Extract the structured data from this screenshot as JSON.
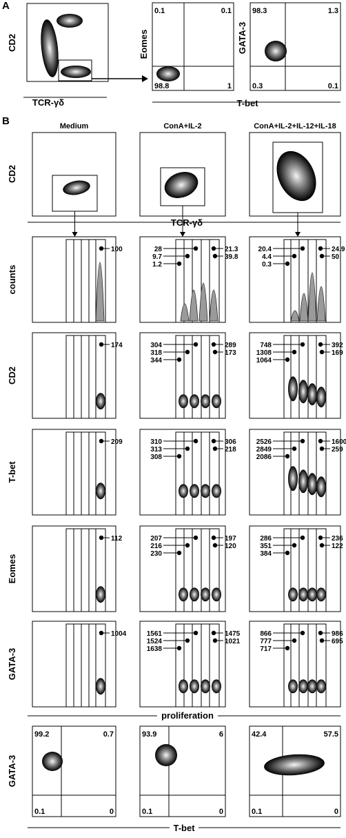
{
  "panel_labels": [
    "A",
    "B"
  ],
  "panelA": {
    "left": {
      "ylabel": "CD2",
      "xlabel": "TCR-γδ"
    },
    "eomes": {
      "ylabel": "Eomes",
      "q": [
        "0.1",
        "0.1",
        "98.8",
        "1"
      ]
    },
    "gata3": {
      "ylabel": "GATA-3",
      "q": [
        "98.3",
        "1.3",
        "0.3",
        "0.1"
      ]
    },
    "xlabel": "T-bet"
  },
  "panelB": {
    "conditions": [
      "Medium",
      "ConA+IL-2",
      "ConA+IL-2+IL-12+IL-18"
    ],
    "top": {
      "ylabel": "CD2",
      "xlabel": "TCR-γδ"
    },
    "rows": [
      {
        "ylabel": "counts",
        "labels": [
          {
            "right": [
              "100"
            ],
            "left": []
          },
          {
            "right": [
              "21.3",
              "39.8"
            ],
            "left": [
              "28",
              "9.7",
              "1.2"
            ]
          },
          {
            "right": [
              "24.9",
              "50"
            ],
            "left": [
              "20.4",
              "4.4",
              "0.3"
            ]
          }
        ]
      },
      {
        "ylabel": "CD2",
        "labels": [
          {
            "right": [
              "174"
            ],
            "left": []
          },
          {
            "right": [
              "289",
              "173"
            ],
            "left": [
              "304",
              "318",
              "344"
            ]
          },
          {
            "right": [
              "392",
              "169"
            ],
            "left": [
              "748",
              "1308",
              "1064"
            ]
          }
        ]
      },
      {
        "ylabel": "T-bet",
        "labels": [
          {
            "right": [
              "209"
            ],
            "left": []
          },
          {
            "right": [
              "306",
              "218"
            ],
            "left": [
              "310",
              "313",
              "308"
            ]
          },
          {
            "right": [
              "1600",
              "259"
            ],
            "left": [
              "2526",
              "2849",
              "2086"
            ]
          }
        ]
      },
      {
        "ylabel": "Eomes",
        "labels": [
          {
            "right": [
              "112"
            ],
            "left": []
          },
          {
            "right": [
              "197",
              "120"
            ],
            "left": [
              "207",
              "216",
              "230"
            ]
          },
          {
            "right": [
              "236",
              "122"
            ],
            "left": [
              "286",
              "351",
              "384"
            ]
          }
        ]
      },
      {
        "ylabel": "GATA-3",
        "labels": [
          {
            "right": [
              "1004"
            ],
            "left": []
          },
          {
            "right": [
              "1475",
              "1021"
            ],
            "left": [
              "1561",
              "1524",
              "1638"
            ]
          },
          {
            "right": [
              "986",
              "695"
            ],
            "left": [
              "866",
              "777",
              "717"
            ]
          }
        ]
      }
    ],
    "proliferation_label": "proliferation",
    "bottom": {
      "ylabel": "GATA-3",
      "xlabel": "T-bet",
      "q": [
        [
          "99.2",
          "0.7",
          "0.1",
          "0"
        ],
        [
          "93.9",
          "6",
          "0.1",
          "0"
        ],
        [
          "42.4",
          "57.5",
          "0.1",
          "0"
        ]
      ]
    }
  }
}
